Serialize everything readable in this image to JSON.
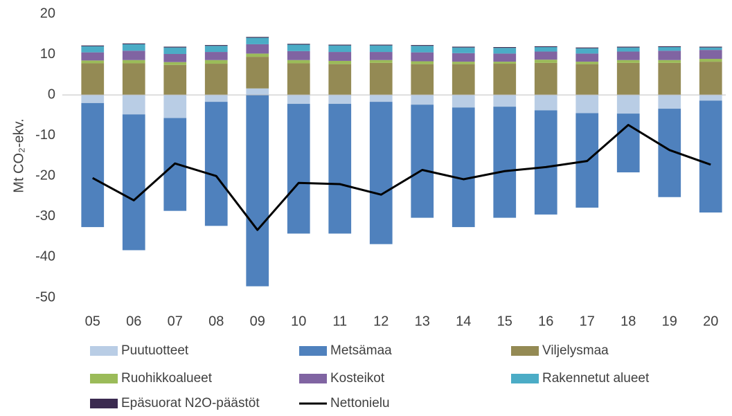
{
  "chart_data": {
    "type": "bar",
    "stacked": true,
    "ylabel": "Mt CO₂-ekv.",
    "categories": [
      "05",
      "06",
      "07",
      "08",
      "09",
      "10",
      "11",
      "12",
      "13",
      "14",
      "15",
      "16",
      "17",
      "18",
      "19",
      "20"
    ],
    "ylim": [
      -50,
      20
    ],
    "yticks": [
      20,
      10,
      0,
      -10,
      -20,
      -30,
      -40,
      -50
    ],
    "grid": false,
    "series": [
      {
        "name": "Puutuotteet",
        "color": "#b9cde5",
        "values": [
          -2.0,
          -4.8,
          -5.7,
          -1.7,
          1.6,
          -2.2,
          -2.2,
          -1.7,
          -2.4,
          -3.1,
          -2.9,
          -3.8,
          -4.5,
          -4.6,
          -3.4,
          -1.4
        ]
      },
      {
        "name": "Metsämaa",
        "color": "#4f81bd",
        "values": [
          -30.6,
          -33.5,
          -22.9,
          -30.6,
          -47.2,
          -32.0,
          -32.0,
          -35.1,
          -27.9,
          -29.5,
          -27.4,
          -25.7,
          -23.3,
          -14.5,
          -21.8,
          -27.6
        ]
      },
      {
        "name": "Viljelysmaa",
        "color": "#948a54",
        "values": [
          7.8,
          7.8,
          7.4,
          7.7,
          7.8,
          7.8,
          7.6,
          7.9,
          7.6,
          7.6,
          7.7,
          7.9,
          7.6,
          7.9,
          7.9,
          8.2
        ]
      },
      {
        "name": "Ruohikkoalueet",
        "color": "#9bbb59",
        "values": [
          0.7,
          0.8,
          0.7,
          0.9,
          0.8,
          0.8,
          0.8,
          0.7,
          0.7,
          0.6,
          0.5,
          0.8,
          0.6,
          0.7,
          0.7,
          0.7
        ]
      },
      {
        "name": "Kosteikot",
        "color": "#8064a2",
        "values": [
          2.0,
          2.3,
          2.0,
          2.0,
          2.3,
          2.2,
          2.2,
          2.0,
          2.2,
          2.1,
          2.0,
          2.0,
          2.0,
          2.1,
          2.3,
          2.2
        ]
      },
      {
        "name": "Rakennetut alueet",
        "color": "#4bacc6",
        "values": [
          1.5,
          1.6,
          1.6,
          1.5,
          1.6,
          1.6,
          1.6,
          1.6,
          1.6,
          1.4,
          1.4,
          1.1,
          1.3,
          1.0,
          0.9,
          0.6
        ]
      },
      {
        "name": "Epäsuorat N2O-päästöt",
        "color": "#3b2a50",
        "values": [
          0.2,
          0.2,
          0.2,
          0.2,
          0.2,
          0.2,
          0.2,
          0.2,
          0.2,
          0.2,
          0.2,
          0.2,
          0.2,
          0.2,
          0.2,
          0.2
        ]
      },
      {
        "name": "Nettonielu",
        "type": "line",
        "color": "#000000",
        "values": [
          -20.5,
          -26.0,
          -16.9,
          -20.0,
          -33.3,
          -21.7,
          -22.0,
          -24.6,
          -18.5,
          -20.8,
          -18.8,
          -17.8,
          -16.3,
          -7.4,
          -13.6,
          -17.2
        ]
      }
    ]
  }
}
